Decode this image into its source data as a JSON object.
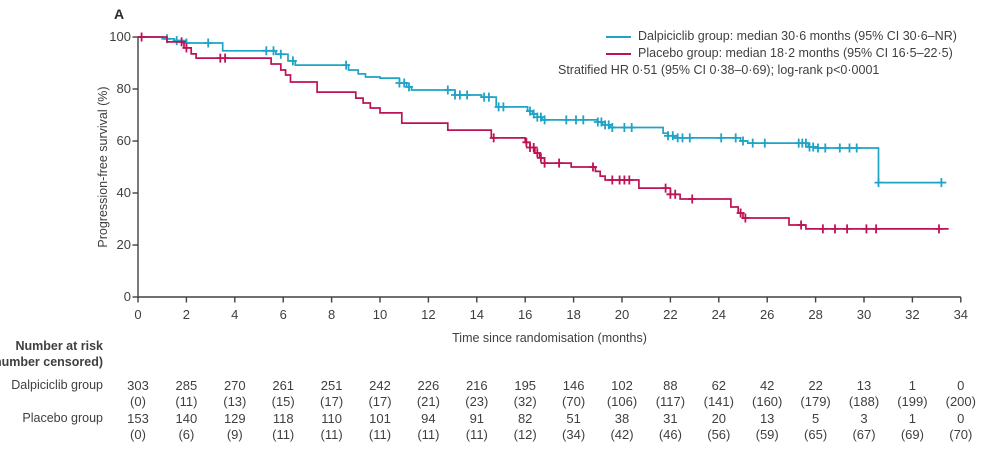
{
  "panel_label": "A",
  "colors": {
    "dalpiciclib": "#1FA3C6",
    "placebo": "#BE1256",
    "axis": "#414042",
    "text": "#3F3F41"
  },
  "legend": {
    "entries": [
      {
        "series": "dalpiciclib",
        "label": "Dalpiciclib group: median 30·6 months (95% CI 30·6–NR)"
      },
      {
        "series": "placebo",
        "label": "Placebo group: median 18·2 months (95% CI 16·5–22·5)"
      }
    ],
    "note": "Stratified HR 0·51 (95% CI 0·38–0·69); log-rank p<0·0001"
  },
  "chart_data": {
    "type": "line",
    "subtype": "kaplan_meier_step",
    "title": "",
    "xlabel": "Time since randomisation (months)",
    "ylabel": "Progression-free survival (%)",
    "xlim": [
      0,
      34
    ],
    "ylim": [
      0,
      100
    ],
    "xticks": [
      0,
      2,
      4,
      6,
      8,
      10,
      12,
      14,
      16,
      18,
      20,
      22,
      24,
      26,
      28,
      30,
      32,
      34
    ],
    "yticks": [
      0,
      20,
      40,
      60,
      80,
      100
    ],
    "grid": false,
    "legend_position": "top-right",
    "series": [
      {
        "name": "Dalpiciclib group",
        "color": "#1FA3C6",
        "median_months": "30·6",
        "ci": "30·6–NR",
        "end_month": 33.4,
        "steps": [
          [
            0,
            100
          ],
          [
            1,
            99.3
          ],
          [
            1.5,
            98.6
          ],
          [
            2,
            97.7
          ],
          [
            3.5,
            94.7
          ],
          [
            5.7,
            93.4
          ],
          [
            6.2,
            90.8
          ],
          [
            6.5,
            89.2
          ],
          [
            8.7,
            87.3
          ],
          [
            9.1,
            85.8
          ],
          [
            9.4,
            84.6
          ],
          [
            10,
            84.2
          ],
          [
            10.8,
            82.3
          ],
          [
            11.1,
            80.8
          ],
          [
            11.3,
            79.6
          ],
          [
            13.1,
            77.7
          ],
          [
            14.2,
            76.9
          ],
          [
            14.8,
            73.1
          ],
          [
            16.1,
            71.5
          ],
          [
            16.3,
            70.4
          ],
          [
            16.5,
            69.2
          ],
          [
            16.7,
            68.1
          ],
          [
            19,
            67.3
          ],
          [
            19.2,
            66.2
          ],
          [
            19.5,
            65.2
          ],
          [
            21.7,
            63
          ],
          [
            21.9,
            62
          ],
          [
            22.2,
            61.2
          ],
          [
            24.9,
            60
          ],
          [
            25.2,
            59.2
          ],
          [
            27.7,
            57.7
          ],
          [
            28.1,
            57.3
          ],
          [
            30.6,
            44
          ]
        ],
        "censor_months": [
          1.2,
          1.6,
          2,
          2.9,
          5.3,
          5.6,
          5.9,
          6.4,
          8.6,
          10.8,
          11,
          11.2,
          12.8,
          13.1,
          13.3,
          13.6,
          14.3,
          14.5,
          14.9,
          15.1,
          16.2,
          16.35,
          16.5,
          16.65,
          16.8,
          17.7,
          18.1,
          18.4,
          19,
          19.15,
          19.3,
          19.45,
          19.6,
          20.1,
          20.4,
          21.9,
          22.1,
          22.3,
          22.5,
          22.8,
          24.1,
          24.7,
          25,
          25.4,
          25.9,
          27.3,
          27.45,
          27.6,
          27.75,
          27.9,
          28.1,
          28.4,
          29,
          29.4,
          29.7,
          30.6,
          33.2
        ]
      },
      {
        "name": "Placebo group",
        "color": "#BE1256",
        "median_months": "18·2",
        "ci": "16·5–22·5",
        "end_month": 33.5,
        "steps": [
          [
            0,
            100
          ],
          [
            1.2,
            98.1
          ],
          [
            1.9,
            95.8
          ],
          [
            2.2,
            93.5
          ],
          [
            2.4,
            91.9
          ],
          [
            5.5,
            89.6
          ],
          [
            5.9,
            87.3
          ],
          [
            6.1,
            85.4
          ],
          [
            6.3,
            82.7
          ],
          [
            7.4,
            78.8
          ],
          [
            9,
            76.5
          ],
          [
            9.3,
            74.6
          ],
          [
            9.6,
            72.7
          ],
          [
            10,
            70.8
          ],
          [
            10.9,
            66.9
          ],
          [
            12.8,
            64.2
          ],
          [
            14.6,
            61.2
          ],
          [
            16,
            59.5
          ],
          [
            16.2,
            57.5
          ],
          [
            16.4,
            55.4
          ],
          [
            16.6,
            53.5
          ],
          [
            16.8,
            51.5
          ],
          [
            17.9,
            50
          ],
          [
            18.9,
            48.3
          ],
          [
            19.1,
            46.5
          ],
          [
            19.3,
            45
          ],
          [
            20.7,
            41.9
          ],
          [
            22,
            39.5
          ],
          [
            22.4,
            37.7
          ],
          [
            24.5,
            34.6
          ],
          [
            24.8,
            32.3
          ],
          [
            25,
            30.4
          ],
          [
            26.9,
            27.7
          ],
          [
            27.6,
            26.2
          ]
        ],
        "censor_months": [
          0.15,
          1.8,
          2,
          3.4,
          3.6,
          14.7,
          16.05,
          16.2,
          16.35,
          16.5,
          16.65,
          16.8,
          17.4,
          18.8,
          19.6,
          19.9,
          20.1,
          20.3,
          21.8,
          22,
          22.2,
          22.9,
          24.9,
          25.1,
          27.4,
          28.3,
          28.8,
          29.3,
          30.1,
          30.5,
          33.1
        ]
      }
    ]
  },
  "risk_table": {
    "header_line1": "Number at risk",
    "header_line2": "(number censored)",
    "time_points": [
      0,
      2,
      4,
      6,
      8,
      10,
      12,
      14,
      16,
      18,
      20,
      22,
      24,
      26,
      28,
      30,
      32,
      34
    ],
    "rows": [
      {
        "label": "Dalpiciclib group",
        "at_risk": [
          "303",
          "285",
          "270",
          "261",
          "251",
          "242",
          "226",
          "216",
          "195",
          "146",
          "102",
          "88",
          "62",
          "42",
          "22",
          "13",
          "1",
          "0"
        ],
        "censored": [
          "(0)",
          "(11)",
          "(13)",
          "(15)",
          "(17)",
          "(17)",
          "(21)",
          "(23)",
          "(32)",
          "(70)",
          "(106)",
          "(117)",
          "(141)",
          "(160)",
          "(179)",
          "(188)",
          "(199)",
          "(200)"
        ]
      },
      {
        "label": "Placebo group",
        "at_risk": [
          "153",
          "140",
          "129",
          "118",
          "110",
          "101",
          "94",
          "91",
          "82",
          "51",
          "38",
          "31",
          "20",
          "13",
          "5",
          "3",
          "1",
          "0"
        ],
        "censored": [
          "(0)",
          "(6)",
          "(9)",
          "(11)",
          "(11)",
          "(11)",
          "(11)",
          "(11)",
          "(12)",
          "(34)",
          "(42)",
          "(46)",
          "(56)",
          "(59)",
          "(65)",
          "(67)",
          "(69)",
          "(70)"
        ]
      }
    ]
  }
}
